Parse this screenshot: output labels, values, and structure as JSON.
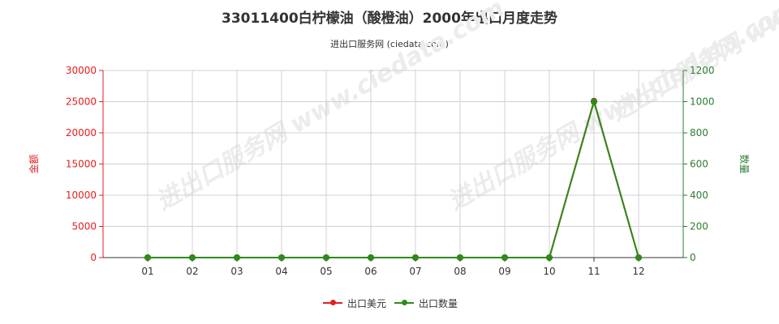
{
  "title": "33011400白柠檬油（酸橙油）2000年出口月度走势",
  "subtitle": "进出口服务网 (ciedata.com)",
  "watermark_text": "进出口服务网 www.ciedata.com",
  "colors": {
    "left_axis": "#e2201f",
    "right_axis": "#2e7d32",
    "series_usd": "#e2201f",
    "series_qty": "#2e8b1a",
    "grid": "#d0d0d0",
    "axis": "#333333"
  },
  "chart_data": {
    "type": "line",
    "categories": [
      "01",
      "02",
      "03",
      "04",
      "05",
      "06",
      "07",
      "08",
      "09",
      "10",
      "11",
      "12"
    ],
    "y_left": {
      "label": "金额",
      "ylim": [
        0,
        30000
      ],
      "ticks": [
        "0",
        "5000",
        "10000",
        "15000",
        "20000",
        "25000",
        "30000"
      ]
    },
    "y_right": {
      "label": "数量",
      "ylim": [
        0,
        1200
      ],
      "ticks": [
        "0",
        "200",
        "400",
        "600",
        "800",
        "1000",
        "1200"
      ]
    },
    "series": [
      {
        "name": "出口美元",
        "axis": "left",
        "color": "#e2201f",
        "values": [
          0,
          0,
          0,
          0,
          0,
          0,
          0,
          0,
          0,
          0,
          25100,
          0
        ]
      },
      {
        "name": "出口数量",
        "axis": "right",
        "color": "#2e8b1a",
        "values": [
          0,
          0,
          0,
          0,
          0,
          0,
          0,
          0,
          0,
          0,
          1000,
          0
        ]
      }
    ],
    "grid": true,
    "legend_position": "bottom-center"
  }
}
